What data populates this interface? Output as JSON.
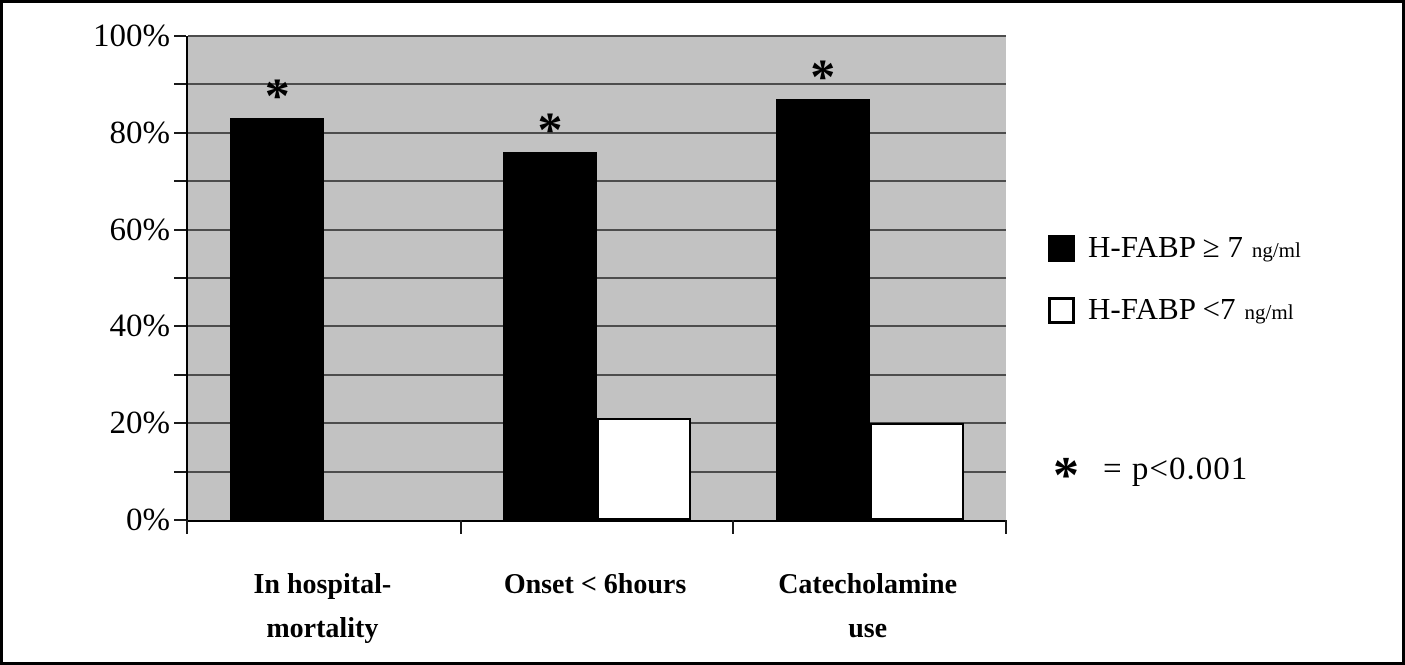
{
  "figure": {
    "background": "#ffffff",
    "outer_border_color": "#000000",
    "plot_background": "#c2c2c2",
    "gridline_color": "#4d4d4d",
    "axis_color": "#000000",
    "bar_black": "#000000",
    "bar_white": "#ffffff"
  },
  "chart_data": {
    "type": "bar",
    "title": "",
    "xlabel": "",
    "ylabel": "",
    "grid": "horizontal, every 10%",
    "legend_position": "right",
    "categories": [
      [
        "In hospital-",
        "mortality"
      ],
      [
        "Onset < 6hours"
      ],
      [
        "Catecholamine",
        "use"
      ]
    ],
    "series": [
      {
        "name": "H-FABP ≥ 7",
        "unit": "ng/ml",
        "swatch": "black",
        "color": "#000000",
        "values": [
          83,
          76,
          87
        ],
        "significance": [
          "*",
          "*",
          "*"
        ]
      },
      {
        "name": "H-FABP <7",
        "unit": "ng/ml",
        "swatch": "white",
        "color": "#ffffff",
        "values": [
          0,
          21,
          20
        ],
        "significance": [
          null,
          null,
          null
        ]
      }
    ],
    "y_axis": {
      "ylim": [
        0,
        100
      ],
      "minor_tick_step_percent": 10,
      "major_ticks": [
        {
          "value": 100,
          "label": "100%"
        },
        {
          "value": 80,
          "label": "80%"
        },
        {
          "value": 60,
          "label": "60%"
        },
        {
          "value": 40,
          "label": "40%"
        },
        {
          "value": 20,
          "label": "20%"
        },
        {
          "value": 0,
          "label": "0%"
        }
      ]
    },
    "annotation": {
      "symbol": "*",
      "text": "= p<0.001"
    }
  }
}
